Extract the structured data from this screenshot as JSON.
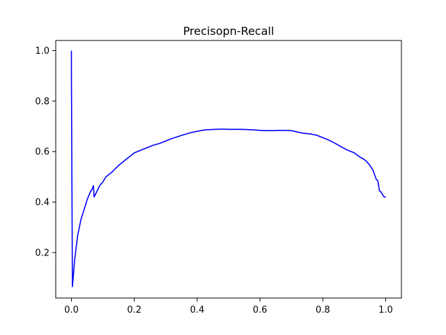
{
  "chart_data": {
    "type": "line",
    "title": "Precisopn-Recall",
    "xlabel": "",
    "ylabel": "",
    "xlim": [
      -0.05,
      1.05
    ],
    "ylim": [
      0.02,
      1.04
    ],
    "x_ticks": [
      {
        "value": 0.0,
        "label": "0.0"
      },
      {
        "value": 0.2,
        "label": "0.2"
      },
      {
        "value": 0.4,
        "label": "0.4"
      },
      {
        "value": 0.6,
        "label": "0.6"
      },
      {
        "value": 0.8,
        "label": "0.8"
      },
      {
        "value": 1.0,
        "label": "1.0"
      }
    ],
    "y_ticks": [
      {
        "value": 0.2,
        "label": "0.2"
      },
      {
        "value": 0.4,
        "label": "0.4"
      },
      {
        "value": 0.6,
        "label": "0.6"
      },
      {
        "value": 0.8,
        "label": "0.8"
      },
      {
        "value": 1.0,
        "label": "1.0"
      }
    ],
    "grid": false,
    "legend": "none",
    "series": [
      {
        "color": "#0000ff",
        "x": [
          0.0,
          0.0,
          0.003,
          0.006,
          0.01,
          0.015,
          0.02,
          0.03,
          0.04,
          0.05,
          0.06,
          0.065,
          0.07,
          0.072,
          0.08,
          0.09,
          0.1,
          0.11,
          0.12,
          0.13,
          0.15,
          0.17,
          0.19,
          0.2,
          0.22,
          0.24,
          0.26,
          0.28,
          0.3,
          0.32,
          0.34,
          0.36,
          0.38,
          0.4,
          0.42,
          0.44,
          0.46,
          0.48,
          0.5,
          0.52,
          0.54,
          0.56,
          0.58,
          0.6,
          0.62,
          0.64,
          0.66,
          0.68,
          0.7,
          0.72,
          0.74,
          0.76,
          0.78,
          0.8,
          0.82,
          0.84,
          0.86,
          0.88,
          0.9,
          0.91,
          0.92,
          0.93,
          0.94,
          0.95,
          0.96,
          0.97,
          0.975,
          0.98,
          0.985,
          0.99,
          0.995,
          1.0
        ],
        "y": [
          1.0,
          0.91,
          0.065,
          0.11,
          0.17,
          0.22,
          0.27,
          0.33,
          0.37,
          0.41,
          0.44,
          0.45,
          0.465,
          0.42,
          0.44,
          0.465,
          0.48,
          0.5,
          0.51,
          0.52,
          0.545,
          0.565,
          0.585,
          0.595,
          0.605,
          0.615,
          0.625,
          0.632,
          0.642,
          0.652,
          0.66,
          0.668,
          0.675,
          0.68,
          0.685,
          0.687,
          0.688,
          0.689,
          0.688,
          0.688,
          0.688,
          0.687,
          0.686,
          0.684,
          0.683,
          0.683,
          0.684,
          0.684,
          0.683,
          0.677,
          0.672,
          0.67,
          0.665,
          0.655,
          0.645,
          0.632,
          0.618,
          0.605,
          0.595,
          0.585,
          0.577,
          0.57,
          0.56,
          0.545,
          0.525,
          0.49,
          0.485,
          0.445,
          0.44,
          0.43,
          0.42,
          0.42
        ]
      }
    ]
  }
}
